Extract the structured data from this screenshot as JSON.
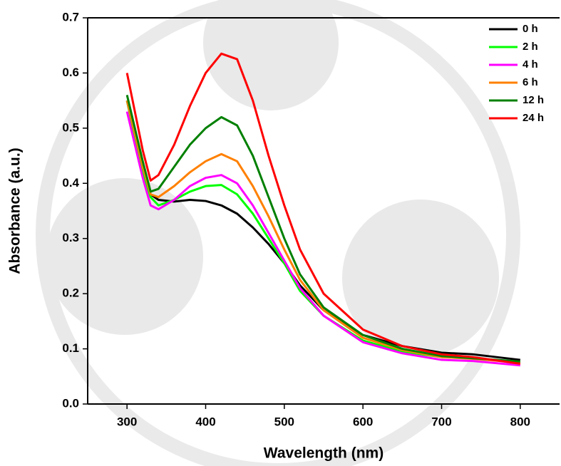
{
  "chart_data": {
    "type": "line",
    "xlabel": "Wavelength (nm)",
    "ylabel": "Absorbance (a.u.)",
    "x": [
      300,
      320,
      330,
      340,
      360,
      380,
      400,
      420,
      440,
      460,
      480,
      500,
      520,
      550,
      600,
      650,
      700,
      740,
      800
    ],
    "series": [
      {
        "name": "0 h",
        "color": "#000000",
        "values": [
          0.55,
          0.42,
          0.38,
          0.37,
          0.367,
          0.37,
          0.368,
          0.36,
          0.345,
          0.32,
          0.29,
          0.255,
          0.215,
          0.17,
          0.125,
          0.105,
          0.093,
          0.09,
          0.08
        ]
      },
      {
        "name": "2 h",
        "color": "#00ff00",
        "values": [
          0.55,
          0.42,
          0.375,
          0.36,
          0.37,
          0.385,
          0.395,
          0.397,
          0.38,
          0.345,
          0.3,
          0.255,
          0.205,
          0.16,
          0.115,
          0.095,
          0.085,
          0.083,
          0.075
        ]
      },
      {
        "name": "4 h",
        "color": "#ff00ff",
        "values": [
          0.53,
          0.41,
          0.36,
          0.353,
          0.37,
          0.395,
          0.41,
          0.415,
          0.4,
          0.36,
          0.31,
          0.26,
          0.21,
          0.16,
          0.112,
          0.092,
          0.08,
          0.078,
          0.07
        ]
      },
      {
        "name": "6 h",
        "color": "#ff8000",
        "values": [
          0.55,
          0.43,
          0.38,
          0.375,
          0.395,
          0.42,
          0.44,
          0.453,
          0.44,
          0.395,
          0.34,
          0.28,
          0.225,
          0.17,
          0.12,
          0.098,
          0.085,
          0.082,
          0.075
        ]
      },
      {
        "name": "12 h",
        "color": "#008000",
        "values": [
          0.56,
          0.44,
          0.385,
          0.39,
          0.43,
          0.47,
          0.5,
          0.52,
          0.505,
          0.45,
          0.375,
          0.3,
          0.235,
          0.175,
          0.125,
          0.1,
          0.087,
          0.083,
          0.077
        ]
      },
      {
        "name": "24 h",
        "color": "#ff0000",
        "values": [
          0.6,
          0.46,
          0.405,
          0.415,
          0.47,
          0.54,
          0.6,
          0.635,
          0.625,
          0.55,
          0.45,
          0.36,
          0.28,
          0.2,
          0.135,
          0.105,
          0.09,
          0.085,
          0.073
        ]
      }
    ],
    "xlim": [
      250,
      850
    ],
    "ylim": [
      0,
      0.7
    ],
    "xticks": [
      300,
      400,
      500,
      600,
      700,
      800
    ],
    "yticks": [
      {
        "value": 0,
        "label": "0.0"
      },
      0.1,
      0.2,
      0.3,
      0.4,
      0.5,
      0.6,
      0.7
    ],
    "legend": "top-right"
  }
}
